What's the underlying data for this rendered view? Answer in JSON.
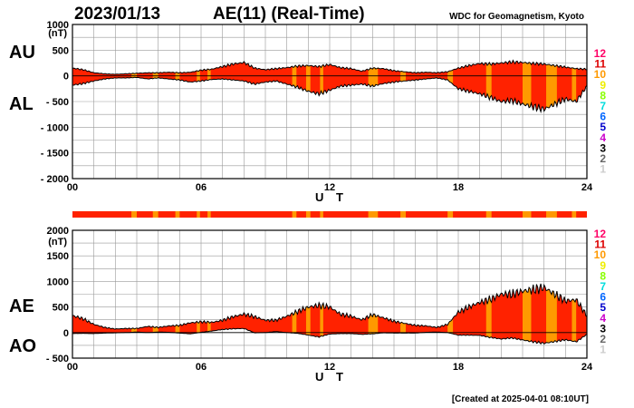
{
  "header": {
    "date": "2023/01/13",
    "index_title": "AE(11) (Real-Time)",
    "source": "WDC for Geomagnetism, Kyoto",
    "footer": "[Created at 2025-04-01 08:10UT]"
  },
  "colors": {
    "fill_main": "#ff2200",
    "fill_alt": "#ff9900",
    "grid": "#999999",
    "line": "#000000"
  },
  "station_levels": [
    {
      "label": "12",
      "color": "#ff0066"
    },
    {
      "label": "11",
      "color": "#dd0000"
    },
    {
      "label": "10",
      "color": "#ff9900"
    },
    {
      "label": "9",
      "color": "#eeee00"
    },
    {
      "label": "8",
      "color": "#88ff00"
    },
    {
      "label": "7",
      "color": "#00dddd"
    },
    {
      "label": "6",
      "color": "#0066ff"
    },
    {
      "label": "5",
      "color": "#0000cc"
    },
    {
      "label": "4",
      "color": "#cc00cc"
    },
    {
      "label": "3",
      "color": "#000000"
    },
    {
      "label": "2",
      "color": "#666666"
    },
    {
      "label": "1",
      "color": "#cccccc"
    }
  ],
  "station_count_strip": {
    "values_by_hour_segment": [
      11,
      11,
      11,
      11,
      11,
      11,
      11,
      11,
      11,
      11,
      11,
      11,
      11,
      11,
      11,
      11,
      11,
      11,
      11,
      11,
      11,
      11,
      11,
      11
    ],
    "level10_intervals_ut_hours": [
      [
        2.75,
        3.0
      ],
      [
        3.75,
        4.0
      ],
      [
        4.8,
        5.0
      ],
      [
        5.8,
        5.95
      ],
      [
        6.3,
        6.45
      ],
      [
        10.25,
        10.45
      ],
      [
        10.9,
        11.1
      ],
      [
        11.55,
        11.7
      ],
      [
        13.8,
        14.25
      ],
      [
        15.3,
        15.55
      ],
      [
        17.5,
        17.75
      ],
      [
        19.3,
        19.55
      ],
      [
        21.0,
        21.4
      ],
      [
        22.1,
        22.6
      ],
      [
        23.3,
        23.5
      ]
    ]
  },
  "chart_data": [
    {
      "type": "area",
      "panel": "AU/AL",
      "upper_label": "AU",
      "lower_label": "AL",
      "unit": "(nT)",
      "xlabel": "U T",
      "xlim": [
        0,
        24
      ],
      "x_ticks": [
        "00",
        "06",
        "12",
        "18",
        "24"
      ],
      "ylim": [
        -2000,
        1000
      ],
      "y_ticks": [
        "1000",
        "500",
        "0",
        "- 500",
        "- 1000",
        "- 1500",
        "- 2000"
      ],
      "grid": true,
      "x_hours": [
        0,
        0.5,
        1,
        1.5,
        2,
        2.5,
        3,
        3.5,
        4,
        4.5,
        5,
        5.5,
        6,
        6.5,
        7,
        7.5,
        8,
        8.5,
        9,
        9.5,
        10,
        10.5,
        11,
        11.5,
        12,
        12.5,
        13,
        13.5,
        14,
        14.5,
        15,
        15.5,
        16,
        16.5,
        17,
        17.5,
        18,
        18.5,
        19,
        19.5,
        20,
        20.5,
        21,
        21.5,
        22,
        22.5,
        23,
        23.5,
        24
      ],
      "series": [
        {
          "name": "AU",
          "values": [
            150,
            120,
            60,
            40,
            30,
            40,
            50,
            60,
            60,
            70,
            60,
            70,
            110,
            130,
            180,
            230,
            260,
            150,
            120,
            140,
            160,
            190,
            200,
            180,
            220,
            160,
            140,
            90,
            150,
            140,
            100,
            80,
            60,
            70,
            60,
            80,
            150,
            200,
            240,
            230,
            250,
            270,
            260,
            240,
            230,
            200,
            170,
            140,
            130
          ]
        },
        {
          "name": "AL",
          "values": [
            -180,
            -150,
            -100,
            -60,
            -40,
            -40,
            -30,
            -60,
            -40,
            -60,
            -80,
            -120,
            -100,
            -70,
            -60,
            -80,
            -100,
            -160,
            -120,
            -100,
            -160,
            -220,
            -300,
            -350,
            -280,
            -200,
            -180,
            -160,
            -200,
            -150,
            -120,
            -100,
            -80,
            -60,
            -40,
            -80,
            -250,
            -300,
            -350,
            -420,
            -500,
            -480,
            -550,
            -600,
            -650,
            -550,
            -450,
            -500,
            -200
          ]
        }
      ]
    },
    {
      "type": "area",
      "panel": "AE/AO",
      "upper_label": "AE",
      "lower_label": "AO",
      "unit": "(nT)",
      "xlabel": "U T",
      "xlim": [
        0,
        24
      ],
      "x_ticks": [
        "00",
        "06",
        "12",
        "18",
        "24"
      ],
      "ylim": [
        -500,
        2000
      ],
      "y_ticks": [
        "2000",
        "1500",
        "1000",
        "500",
        "0",
        "- 500"
      ],
      "grid": true,
      "x_hours": [
        0,
        0.5,
        1,
        1.5,
        2,
        2.5,
        3,
        3.5,
        4,
        4.5,
        5,
        5.5,
        6,
        6.5,
        7,
        7.5,
        8,
        8.5,
        9,
        9.5,
        10,
        10.5,
        11,
        11.5,
        12,
        12.5,
        13,
        13.5,
        14,
        14.5,
        15,
        15.5,
        16,
        16.5,
        17,
        17.5,
        18,
        18.5,
        19,
        19.5,
        20,
        20.5,
        21,
        21.5,
        22,
        22.5,
        23,
        23.5,
        24
      ],
      "series": [
        {
          "name": "AE",
          "values": [
            330,
            270,
            160,
            100,
            70,
            80,
            80,
            120,
            100,
            130,
            140,
            190,
            210,
            200,
            240,
            310,
            360,
            310,
            240,
            240,
            320,
            410,
            500,
            530,
            500,
            360,
            320,
            250,
            350,
            290,
            220,
            180,
            140,
            130,
            100,
            160,
            400,
            500,
            590,
            650,
            750,
            750,
            810,
            840,
            880,
            750,
            620,
            640,
            330
          ]
        },
        {
          "name": "AO",
          "values": [
            -20,
            -15,
            -20,
            -10,
            -5,
            0,
            10,
            0,
            10,
            5,
            -10,
            -25,
            5,
            30,
            60,
            75,
            80,
            -5,
            0,
            20,
            0,
            -15,
            -50,
            -85,
            -30,
            -20,
            -20,
            -35,
            -25,
            -5,
            -10,
            -10,
            -10,
            5,
            10,
            0,
            -50,
            -50,
            -55,
            -95,
            -125,
            -105,
            -145,
            -180,
            -210,
            -175,
            -140,
            -180,
            -35
          ]
        }
      ]
    }
  ]
}
